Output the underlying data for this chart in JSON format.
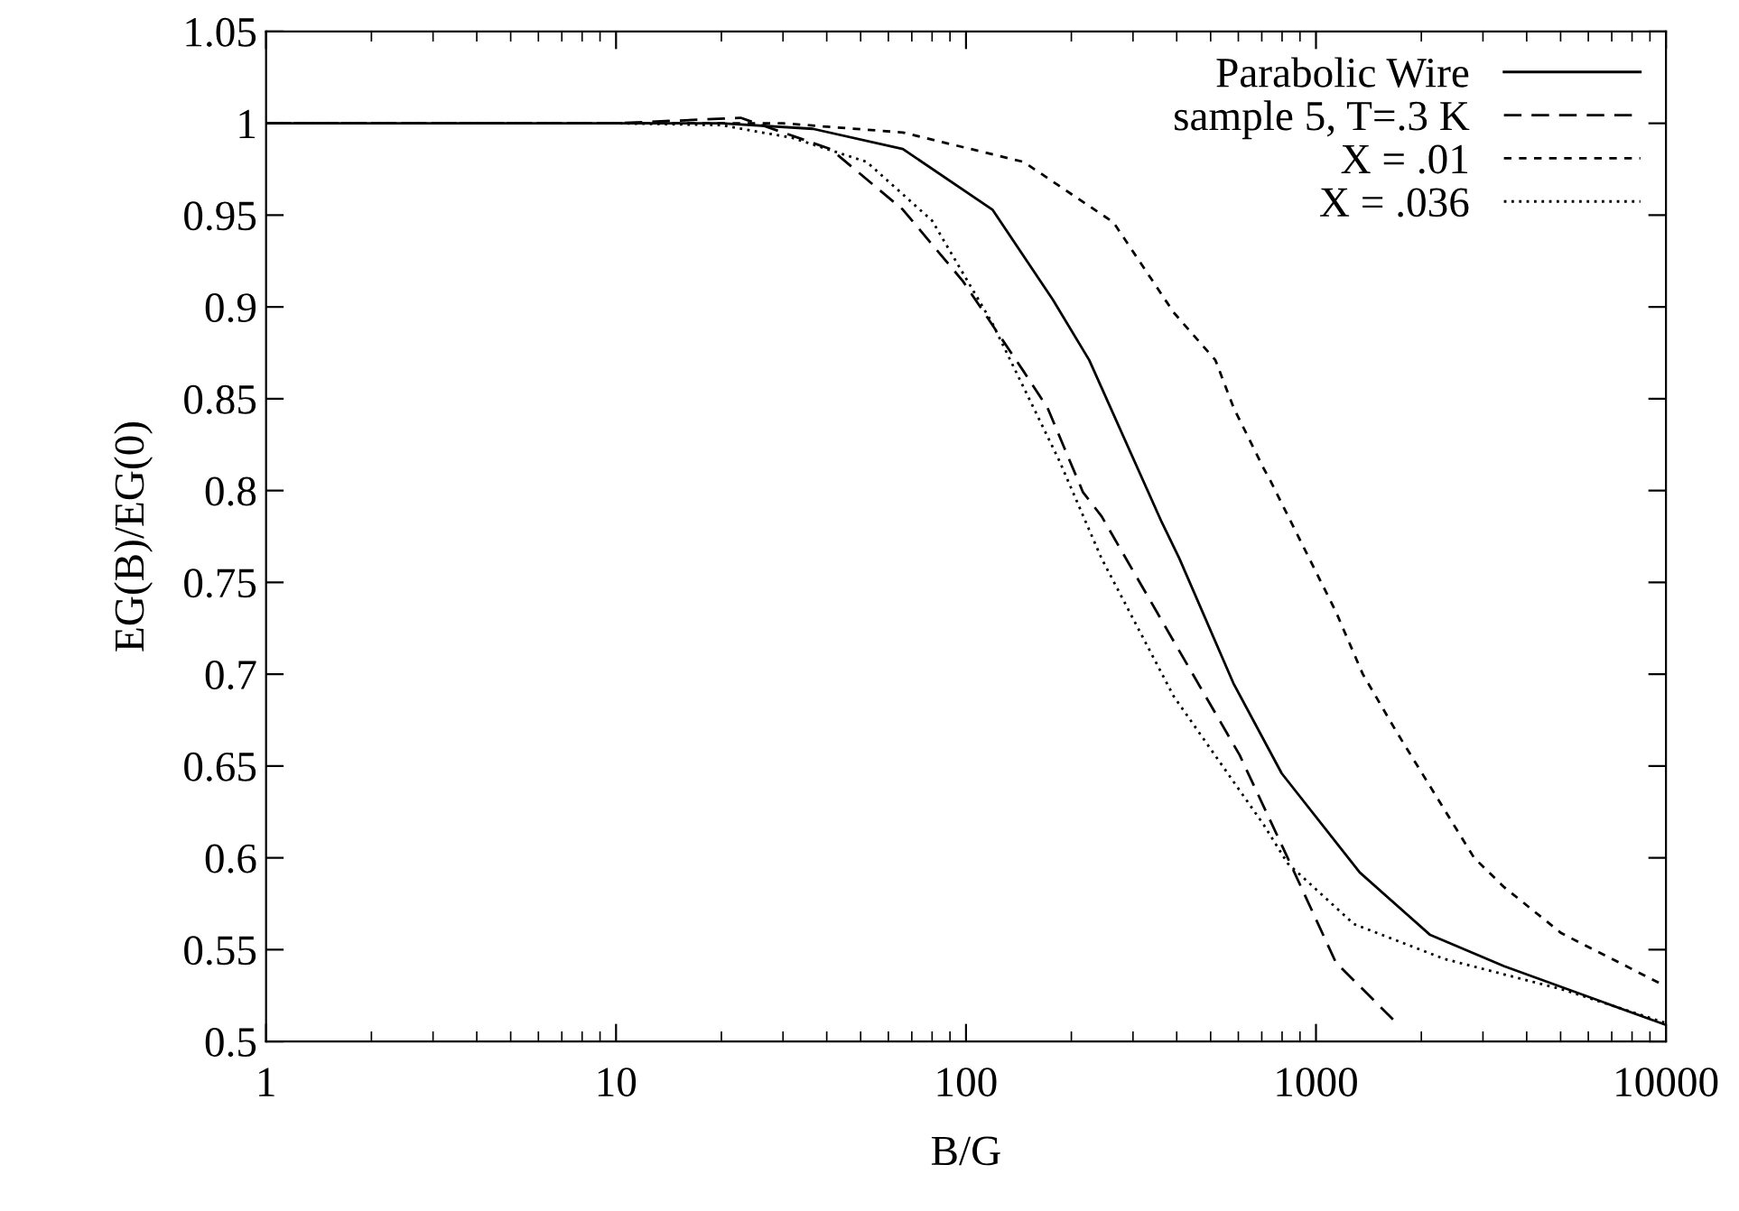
{
  "chart_data": {
    "type": "line",
    "xlabel": "B/G",
    "ylabel": "EG(B)/EG(0)",
    "log": "x",
    "xlim": [
      1,
      10000
    ],
    "xticks": [
      1,
      10,
      100,
      1000,
      10000
    ],
    "ylim": [
      0.5,
      1.05
    ],
    "yticks": [
      0.5,
      0.55,
      0.6,
      0.65,
      0.7,
      0.75,
      0.8,
      0.85,
      0.9,
      0.95,
      1,
      1.05
    ],
    "grid": false,
    "legend": "top right",
    "marker": "none",
    "series": [
      {
        "name": "Parabolic Wire",
        "color": "#000000",
        "line_style": "solid",
        "x": [
          1,
          10,
          20,
          36.5,
          66,
          119,
          177,
          225,
          362,
          407,
          581,
          798,
          1334,
          2120,
          3450,
          10000
        ],
        "values": [
          1,
          1,
          1,
          0.997,
          0.986,
          0.953,
          0.904,
          0.871,
          0.783,
          0.763,
          0.695,
          0.646,
          0.592,
          0.558,
          0.541,
          0.509
        ]
      },
      {
        "name": "sample 5, T=.3 K",
        "color": "#000000",
        "line_style": "dashed",
        "x": [
          1,
          10,
          22.7,
          41,
          66,
          98,
          146,
          171,
          216,
          244,
          392,
          605,
          830,
          1140,
          1660
        ],
        "values": [
          1,
          1,
          1.003,
          0.986,
          0.953,
          0.914,
          0.865,
          0.845,
          0.799,
          0.786,
          0.718,
          0.656,
          0.6,
          0.543,
          0.512
        ]
      },
      {
        "name": "X = .01",
        "color": "#000000",
        "line_style": "short dashed",
        "x": [
          1,
          10,
          30,
          66,
          146,
          264,
          392,
          516,
          582,
          709,
          738,
          1140,
          1361,
          1694,
          2830,
          3450,
          5020,
          10000
        ],
        "values": [
          1,
          1,
          1,
          0.995,
          0.979,
          0.946,
          0.897,
          0.871,
          0.845,
          0.812,
          0.806,
          0.734,
          0.7,
          0.669,
          0.6,
          0.584,
          0.559,
          0.53
        ]
      },
      {
        "name": "X = .036",
        "color": "#000000",
        "line_style": "dotted",
        "x": [
          1,
          10,
          20,
          32,
          52,
          80,
          119,
          185,
          244,
          392,
          709,
          830,
          1282,
          2322,
          5130,
          10000
        ],
        "values": [
          1,
          1,
          0.999,
          0.992,
          0.979,
          0.947,
          0.891,
          0.816,
          0.763,
          0.688,
          0.618,
          0.597,
          0.564,
          0.545,
          0.528,
          0.51
        ]
      }
    ]
  }
}
